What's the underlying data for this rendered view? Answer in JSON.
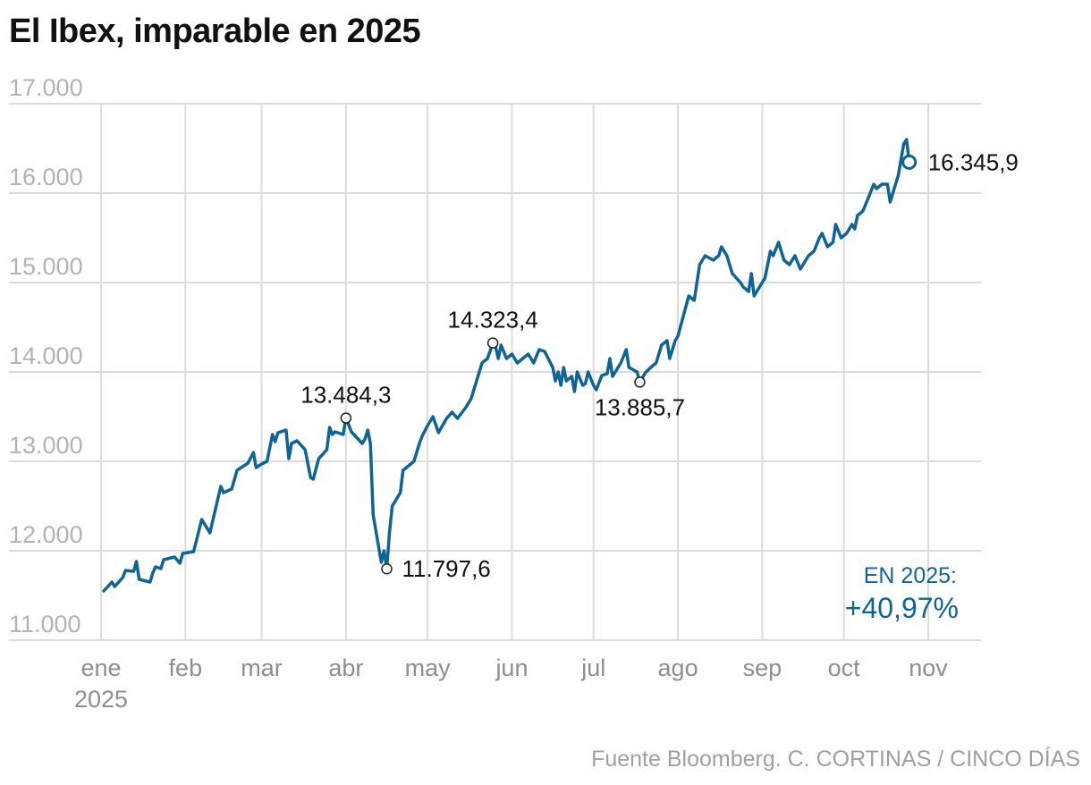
{
  "title": "El Ibex, imparable en 2025",
  "source": "Fuente Bloomberg. C. CORTINAS / CINCO DÍAS",
  "colors": {
    "line": "#0e6495",
    "grid": "#dcdcdc",
    "ytick": "#b3b3b3",
    "xtick": "#8e8e8e",
    "text": "#111111"
  },
  "chart_data": {
    "type": "line",
    "title": "El Ibex, imparable en 2025",
    "xlabel": "",
    "ylabel": "",
    "ylim": [
      11000,
      17000
    ],
    "grid": true,
    "y_ticks": [
      {
        "value": 11000,
        "label": "11.000"
      },
      {
        "value": 12000,
        "label": "12.000"
      },
      {
        "value": 13000,
        "label": "13.000"
      },
      {
        "value": 14000,
        "label": "14.000"
      },
      {
        "value": 15000,
        "label": "15.000"
      },
      {
        "value": 16000,
        "label": "16.000"
      },
      {
        "value": 17000,
        "label": "17.000"
      }
    ],
    "x_ticks": [
      {
        "date": "2025-01-01",
        "label": "ene",
        "sublabel": "2025"
      },
      {
        "date": "2025-02-01",
        "label": "feb"
      },
      {
        "date": "2025-03-01",
        "label": "mar"
      },
      {
        "date": "2025-04-01",
        "label": "abr"
      },
      {
        "date": "2025-05-01",
        "label": "may"
      },
      {
        "date": "2025-06-01",
        "label": "jun"
      },
      {
        "date": "2025-07-01",
        "label": "jul"
      },
      {
        "date": "2025-08-01",
        "label": "ago"
      },
      {
        "date": "2025-09-01",
        "label": "sep"
      },
      {
        "date": "2025-10-01",
        "label": "oct"
      },
      {
        "date": "2025-11-01",
        "label": "nov"
      }
    ],
    "series": [
      {
        "points": [
          [
            "2025-01-02",
            11550
          ],
          [
            "2025-01-05",
            11650
          ],
          [
            "2025-01-06",
            11600
          ],
          [
            "2025-01-09",
            11700
          ],
          [
            "2025-01-10",
            11780
          ],
          [
            "2025-01-13",
            11770
          ],
          [
            "2025-01-14",
            11880
          ],
          [
            "2025-01-15",
            11680
          ],
          [
            "2025-01-19",
            11650
          ],
          [
            "2025-01-20",
            11750
          ],
          [
            "2025-01-21",
            11820
          ],
          [
            "2025-01-23",
            11800
          ],
          [
            "2025-01-24",
            11900
          ],
          [
            "2025-01-28",
            11930
          ],
          [
            "2025-01-30",
            11860
          ],
          [
            "2025-01-31",
            11970
          ],
          [
            "2025-02-04",
            11990
          ],
          [
            "2025-02-07",
            12350
          ],
          [
            "2025-02-09",
            12250
          ],
          [
            "2025-02-10",
            12200
          ],
          [
            "2025-02-14",
            12720
          ],
          [
            "2025-02-15",
            12650
          ],
          [
            "2025-02-18",
            12690
          ],
          [
            "2025-02-20",
            12900
          ],
          [
            "2025-02-24",
            12980
          ],
          [
            "2025-02-26",
            13100
          ],
          [
            "2025-02-27",
            12930
          ],
          [
            "2025-03-01",
            12970
          ],
          [
            "2025-03-03",
            13000
          ],
          [
            "2025-03-05",
            13300
          ],
          [
            "2025-03-06",
            13220
          ],
          [
            "2025-03-07",
            13320
          ],
          [
            "2025-03-10",
            13350
          ],
          [
            "2025-03-11",
            13030
          ],
          [
            "2025-03-12",
            13200
          ],
          [
            "2025-03-14",
            13230
          ],
          [
            "2025-03-17",
            13130
          ],
          [
            "2025-03-19",
            12820
          ],
          [
            "2025-03-20",
            12800
          ],
          [
            "2025-03-22",
            13030
          ],
          [
            "2025-03-25",
            13130
          ],
          [
            "2025-03-26",
            13380
          ],
          [
            "2025-03-27",
            13300
          ],
          [
            "2025-03-28",
            13330
          ],
          [
            "2025-03-31",
            13300
          ],
          [
            "2025-04-01",
            13490
          ],
          [
            "2025-04-03",
            13330
          ],
          [
            "2025-04-07",
            13200
          ],
          [
            "2025-04-08",
            13250
          ],
          [
            "2025-04-09",
            13350
          ],
          [
            "2025-04-10",
            13200
          ],
          [
            "2025-04-11",
            12400
          ],
          [
            "2025-04-14",
            11870
          ],
          [
            "2025-04-15",
            12000
          ],
          [
            "2025-04-16",
            11797.6
          ],
          [
            "2025-04-17",
            12200
          ],
          [
            "2025-04-18",
            12500
          ],
          [
            "2025-04-21",
            12650
          ],
          [
            "2025-04-22",
            12900
          ],
          [
            "2025-04-24",
            12950
          ],
          [
            "2025-04-26",
            13000
          ],
          [
            "2025-04-28",
            13200
          ],
          [
            "2025-04-29",
            13280
          ],
          [
            "2025-05-01",
            13400
          ],
          [
            "2025-05-03",
            13500
          ],
          [
            "2025-05-05",
            13320
          ],
          [
            "2025-05-08",
            13480
          ],
          [
            "2025-05-10",
            13550
          ],
          [
            "2025-05-12",
            13480
          ],
          [
            "2025-05-15",
            13600
          ],
          [
            "2025-05-17",
            13700
          ],
          [
            "2025-05-19",
            13900
          ],
          [
            "2025-05-21",
            14100
          ],
          [
            "2025-05-23",
            14150
          ],
          [
            "2025-05-25",
            14323.4
          ],
          [
            "2025-05-26",
            14280
          ],
          [
            "2025-05-27",
            14150
          ],
          [
            "2025-05-28",
            14300
          ],
          [
            "2025-05-30",
            14150
          ],
          [
            "2025-06-01",
            14200
          ],
          [
            "2025-06-03",
            14100
          ],
          [
            "2025-06-05",
            14150
          ],
          [
            "2025-06-07",
            14200
          ],
          [
            "2025-06-09",
            14100
          ],
          [
            "2025-06-11",
            14250
          ],
          [
            "2025-06-13",
            14230
          ],
          [
            "2025-06-16",
            14050
          ],
          [
            "2025-06-17",
            13900
          ],
          [
            "2025-06-18",
            14000
          ],
          [
            "2025-06-19",
            13850
          ],
          [
            "2025-06-20",
            14050
          ],
          [
            "2025-06-21",
            13900
          ],
          [
            "2025-06-23",
            13950
          ],
          [
            "2025-06-24",
            13780
          ],
          [
            "2025-06-25",
            14000
          ],
          [
            "2025-06-27",
            13850
          ],
          [
            "2025-06-28",
            13870
          ],
          [
            "2025-06-29",
            14000
          ],
          [
            "2025-07-01",
            13850
          ],
          [
            "2025-07-02",
            13800
          ],
          [
            "2025-07-04",
            13960
          ],
          [
            "2025-07-06",
            13980
          ],
          [
            "2025-07-07",
            14150
          ],
          [
            "2025-07-08",
            13950
          ],
          [
            "2025-07-11",
            14100
          ],
          [
            "2025-07-13",
            14250
          ],
          [
            "2025-07-14",
            14050
          ],
          [
            "2025-07-17",
            14000
          ],
          [
            "2025-07-18",
            13885.7
          ],
          [
            "2025-07-20",
            13990
          ],
          [
            "2025-07-22",
            14050
          ],
          [
            "2025-07-24",
            14100
          ],
          [
            "2025-07-26",
            14300
          ],
          [
            "2025-07-28",
            14350
          ],
          [
            "2025-07-29",
            14150
          ],
          [
            "2025-07-31",
            14350
          ],
          [
            "2025-08-01",
            14400
          ],
          [
            "2025-08-05",
            14850
          ],
          [
            "2025-08-07",
            14800
          ],
          [
            "2025-08-09",
            15200
          ],
          [
            "2025-08-11",
            15300
          ],
          [
            "2025-08-14",
            15250
          ],
          [
            "2025-08-16",
            15300
          ],
          [
            "2025-08-17",
            15400
          ],
          [
            "2025-08-19",
            15300
          ],
          [
            "2025-08-21",
            15100
          ],
          [
            "2025-08-24",
            15000
          ],
          [
            "2025-08-25",
            14950
          ],
          [
            "2025-08-27",
            14900
          ],
          [
            "2025-08-28",
            15100
          ],
          [
            "2025-08-29",
            14850
          ],
          [
            "2025-08-31",
            14950
          ],
          [
            "2025-09-02",
            15050
          ],
          [
            "2025-09-04",
            15350
          ],
          [
            "2025-09-05",
            15300
          ],
          [
            "2025-09-07",
            15450
          ],
          [
            "2025-09-09",
            15250
          ],
          [
            "2025-09-11",
            15200
          ],
          [
            "2025-09-13",
            15300
          ],
          [
            "2025-09-15",
            15150
          ],
          [
            "2025-09-16",
            15200
          ],
          [
            "2025-09-18",
            15300
          ],
          [
            "2025-09-20",
            15350
          ],
          [
            "2025-09-22",
            15500
          ],
          [
            "2025-09-23",
            15550
          ],
          [
            "2025-09-25",
            15400
          ],
          [
            "2025-09-27",
            15450
          ],
          [
            "2025-09-28",
            15650
          ],
          [
            "2025-09-30",
            15500
          ],
          [
            "2025-10-02",
            15550
          ],
          [
            "2025-10-04",
            15650
          ],
          [
            "2025-10-05",
            15600
          ],
          [
            "2025-10-06",
            15750
          ],
          [
            "2025-10-08",
            15800
          ],
          [
            "2025-10-10",
            15950
          ],
          [
            "2025-10-12",
            16100
          ],
          [
            "2025-10-13",
            16050
          ],
          [
            "2025-10-15",
            16100
          ],
          [
            "2025-10-17",
            16100
          ],
          [
            "2025-10-18",
            15900
          ],
          [
            "2025-10-21",
            16200
          ],
          [
            "2025-10-23",
            16550
          ],
          [
            "2025-10-24",
            16600
          ],
          [
            "2025-10-25",
            16345.9
          ]
        ]
      }
    ],
    "annotations": [
      {
        "date": "2025-04-01",
        "value": 13484.3,
        "label": "13.484,3",
        "position": "above"
      },
      {
        "date": "2025-04-16",
        "value": 11797.6,
        "label": "11.797,6",
        "position": "right"
      },
      {
        "date": "2025-05-25",
        "value": 14323.4,
        "label": "14.323,4",
        "position": "above"
      },
      {
        "date": "2025-07-18",
        "value": 13885.7,
        "label": "13.885,7",
        "position": "below"
      },
      {
        "date": "2025-10-25",
        "value": 16345.9,
        "label": "16.345,9",
        "position": "right",
        "last": true
      }
    ],
    "ytd": {
      "label": "EN 2025:",
      "value": "+40,97%"
    }
  }
}
